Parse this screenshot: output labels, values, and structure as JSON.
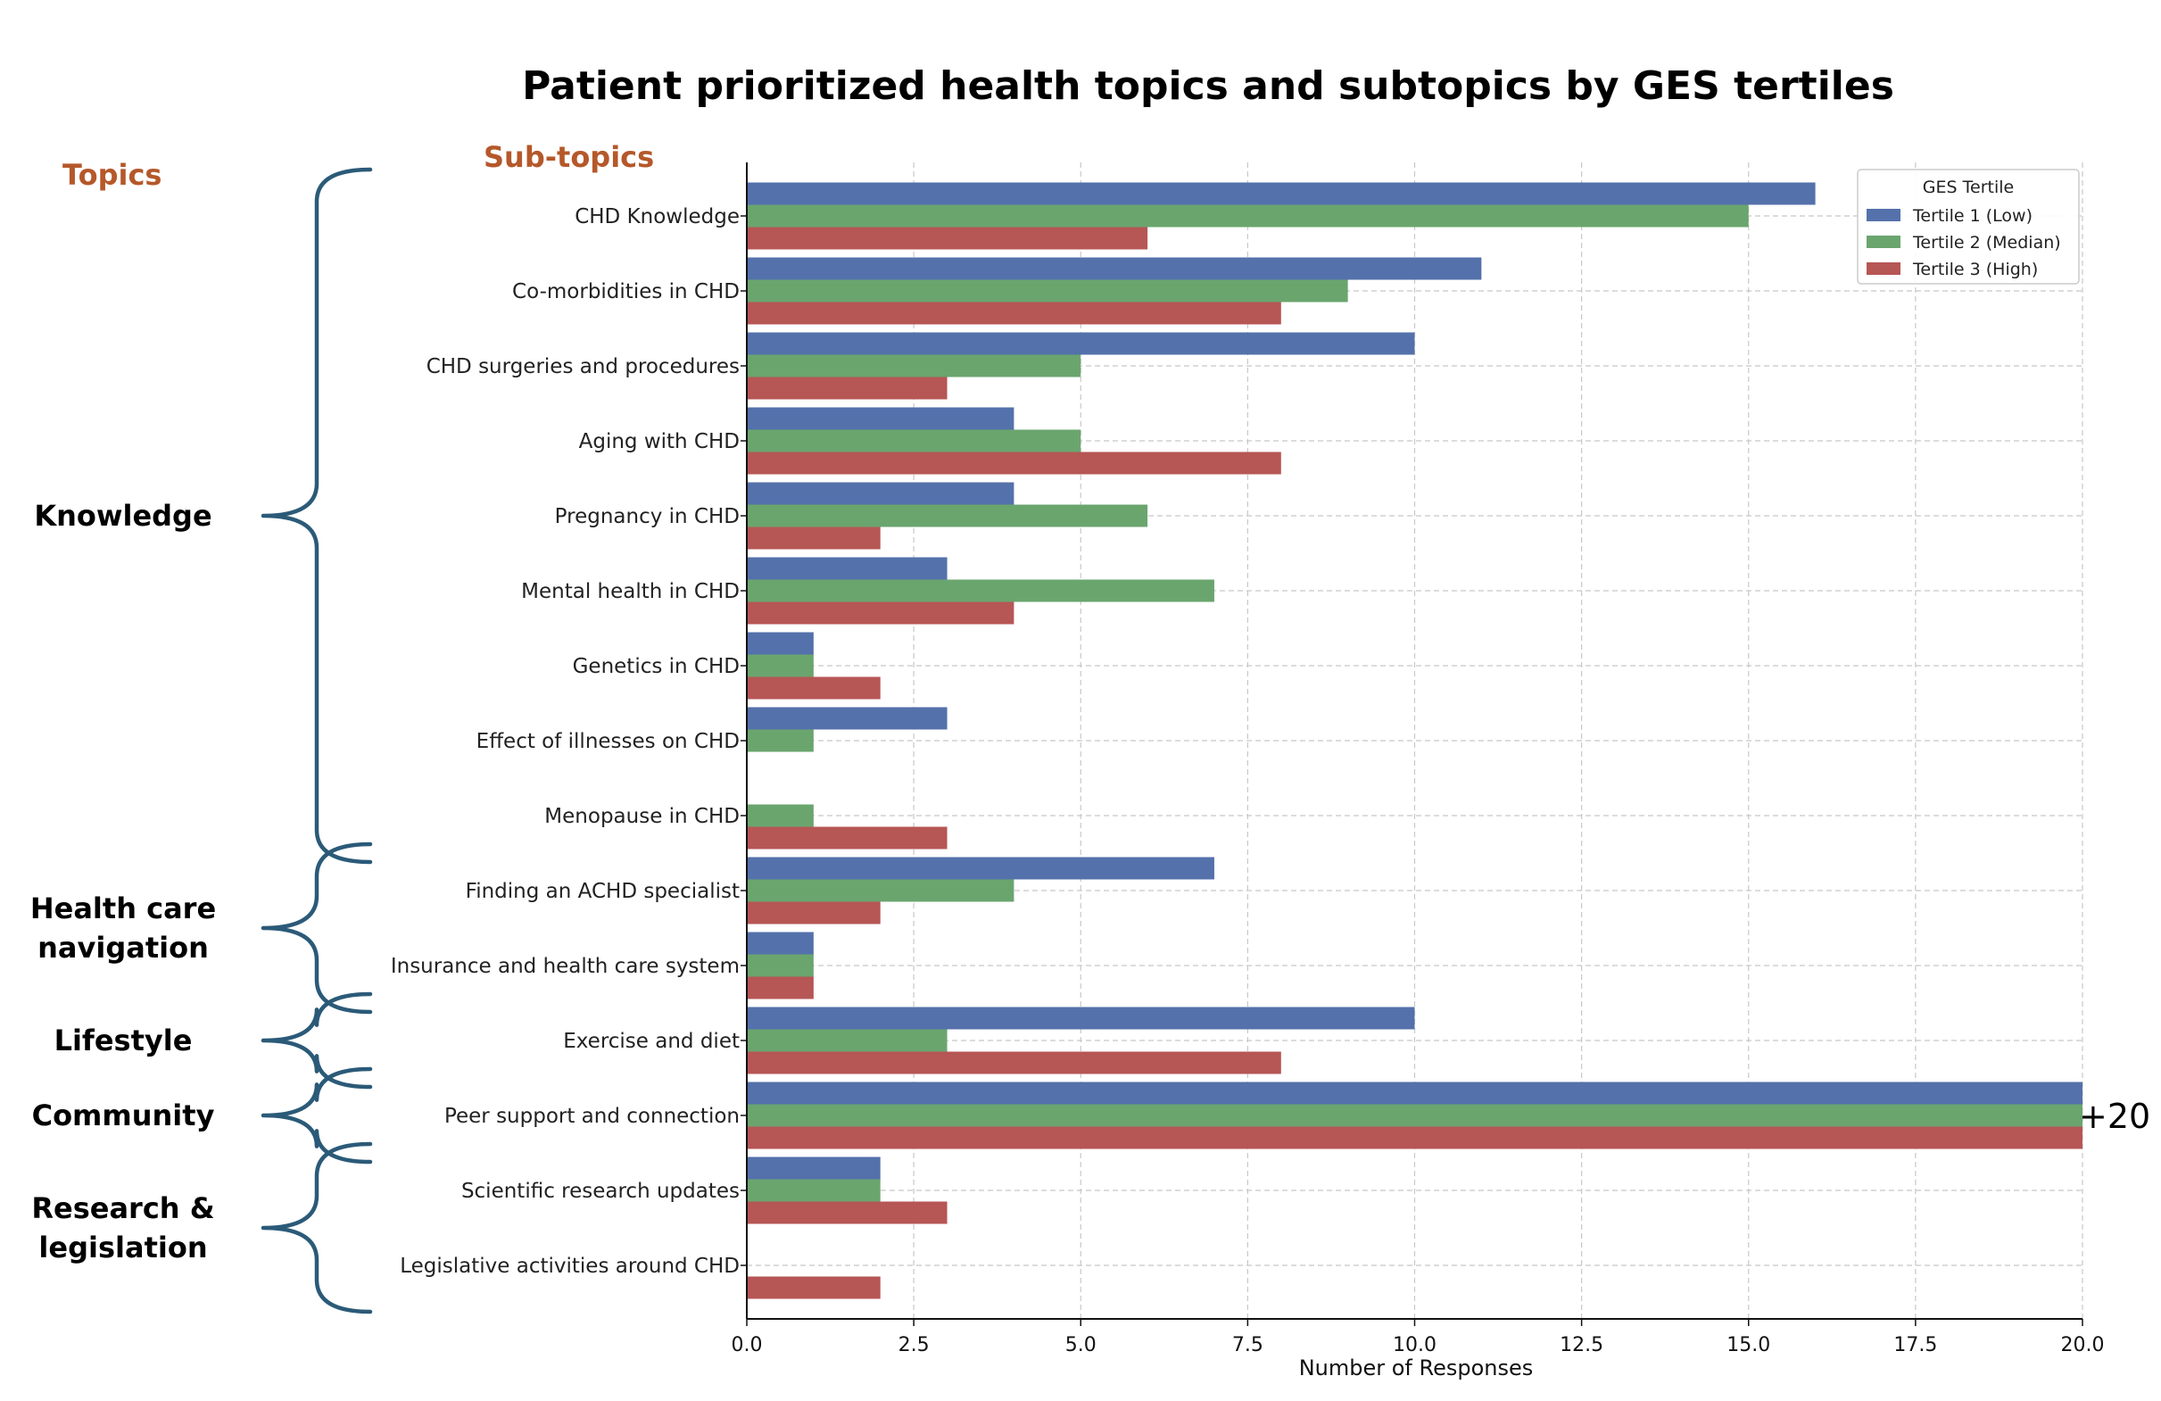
{
  "chart_data": {
    "type": "bar",
    "orientation": "horizontal",
    "title": "Patient prioritized health topics and subtopics by GES tertiles",
    "xlabel": "Number of Responses",
    "ylabel": "",
    "xlim": [
      0,
      20
    ],
    "xticks": [
      "0.0",
      "2.5",
      "5.0",
      "7.5",
      "10.0",
      "12.5",
      "15.0",
      "17.5",
      "20.0"
    ],
    "grid": true,
    "legend": {
      "title": "GES Tertile",
      "position": "top-right"
    },
    "topics_header": "Topics",
    "subtopics_header": "Sub-topics",
    "categories": [
      "CHD Knowledge",
      "Co-morbidities in CHD",
      "CHD surgeries and procedures",
      "Aging with CHD",
      "Pregnancy in CHD",
      "Mental health in CHD",
      "Genetics in CHD",
      "Effect of illnesses on CHD",
      "Menopause in CHD",
      "Finding an ACHD specialist",
      "Insurance and health care system",
      "Exercise and diet",
      "Peer support and connection",
      "Scientific research updates",
      "Legislative activities around CHD"
    ],
    "series": [
      {
        "name": "Tertile 1 (Low)",
        "color": "#5471ab",
        "values": [
          16,
          11,
          10,
          4,
          4,
          3,
          1,
          3,
          0,
          7,
          1,
          10,
          20,
          2,
          0
        ]
      },
      {
        "name": "Tertile 2 (Median)",
        "color": "#6aa56e",
        "values": [
          15,
          9,
          5,
          5,
          6,
          7,
          1,
          1,
          1,
          4,
          1,
          3,
          20,
          2,
          0
        ]
      },
      {
        "name": "Tertile 3 (High)",
        "color": "#b65655",
        "values": [
          6,
          8,
          3,
          8,
          2,
          4,
          2,
          0,
          3,
          2,
          1,
          8,
          20,
          3,
          2
        ]
      }
    ],
    "topics": [
      {
        "lines": [
          "Knowledge"
        ],
        "first": 0,
        "last": 8
      },
      {
        "lines": [
          "Health care",
          "navigation"
        ],
        "first": 9,
        "last": 10
      },
      {
        "lines": [
          "Lifestyle"
        ],
        "first": 11,
        "last": 11
      },
      {
        "lines": [
          "Community"
        ],
        "first": 12,
        "last": 12
      },
      {
        "lines": [
          "Research &",
          "legislation"
        ],
        "first": 13,
        "last": 14
      }
    ],
    "annotations": [
      {
        "text": "+20",
        "category": "Peer support and connection"
      }
    ]
  }
}
